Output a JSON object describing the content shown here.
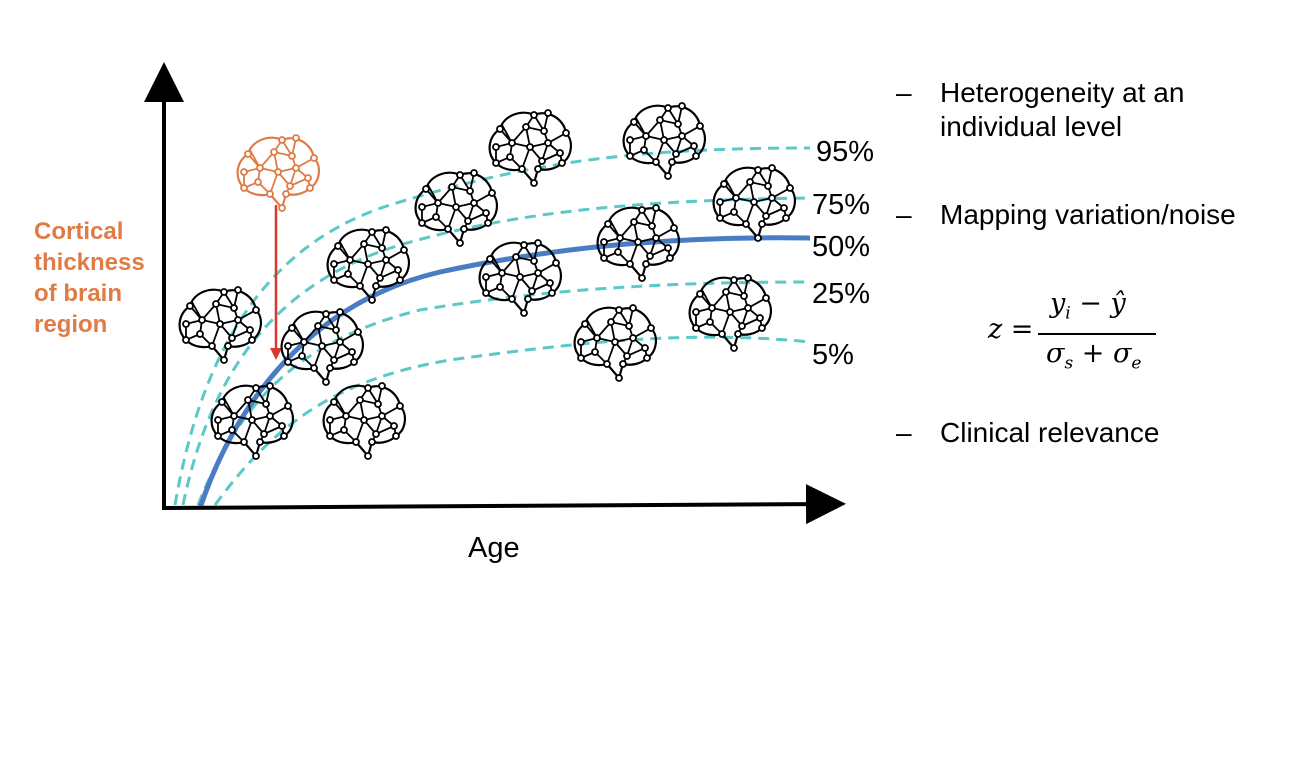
{
  "diagram": {
    "y_axis_label_lines": [
      "Cortical",
      "thickness",
      "of brain",
      "region"
    ],
    "x_axis_label": "Age",
    "percentile_labels": [
      "95%",
      "75%",
      "50%",
      "25%",
      "5%"
    ],
    "colors": {
      "median_curve": "#4A7CC4",
      "percentile_curves": "#5CC8C8",
      "highlight_brain": "#E07B45",
      "arrow": "#D9382B",
      "axis": "#000000"
    },
    "icons": [
      "brain-network-icon"
    ]
  },
  "notes": {
    "bullet_symbol": "–",
    "bullets": [
      "Heterogeneity at an individual level",
      "Mapping variation/noise",
      "Clinical relevance"
    ]
  },
  "formula": {
    "lhs": "z =",
    "numerator": "y_i − ŷ",
    "denominator": "σ_s + σ_e"
  }
}
